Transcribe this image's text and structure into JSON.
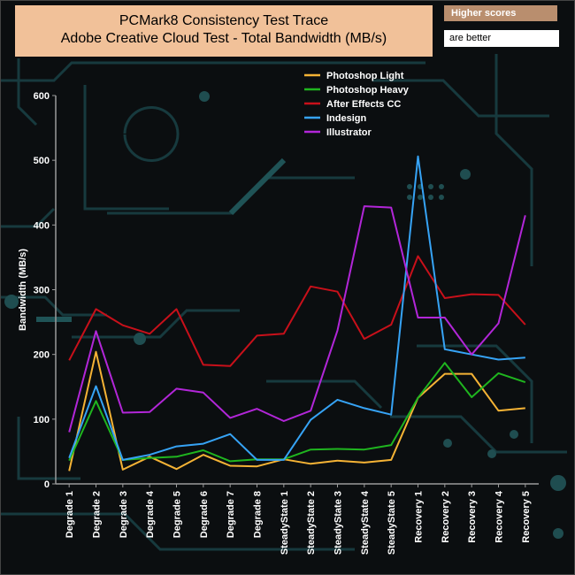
{
  "title_line1": "PCMark8 Consistency Test Trace",
  "title_line2": "Adobe Creative Cloud Test - Total Bandwidth (MB/s)",
  "note_top": "Higher scores",
  "note_bottom": "are better",
  "colors": {
    "photoshop_light": "#f5b335",
    "photoshop_heavy": "#1fb51f",
    "after_effects": "#c8101a",
    "indesign": "#36a3f5",
    "illustrator": "#b226d8"
  },
  "chart_data": {
    "type": "line",
    "ylabel": "Bandwidth (MB/s)",
    "ylim": [
      0,
      600
    ],
    "yticks": [
      0,
      100,
      200,
      300,
      400,
      500,
      600
    ],
    "legend_position": "top-center",
    "categories": [
      "Degrade 1",
      "Degrade 2",
      "Degrade 3",
      "Degrade 4",
      "Degrade 5",
      "Degrade 6",
      "Degrade 7",
      "Degrade 8",
      "SteadyState 1",
      "SteadyState 2",
      "SteadyState 3",
      "SteadyState 4",
      "SteadyState 5",
      "Recovery 1",
      "Recovery 2",
      "Recovery 3",
      "Recovery 4",
      "Recovery 5"
    ],
    "series": [
      {
        "name": "Photoshop Light",
        "color": "#f5b335",
        "values": [
          20,
          204,
          22,
          42,
          23,
          45,
          28,
          27,
          38,
          31,
          36,
          33,
          37,
          133,
          170,
          170,
          113,
          117
        ]
      },
      {
        "name": " Photoshop Heavy",
        "color": "#1fb51f",
        "values": [
          36,
          128,
          37,
          40,
          42,
          52,
          35,
          38,
          38,
          53,
          54,
          53,
          60,
          133,
          187,
          134,
          171,
          157
        ]
      },
      {
        "name": "After Effects CC",
        "color": "#c8101a",
        "values": [
          191,
          270,
          245,
          232,
          270,
          184,
          182,
          229,
          232,
          305,
          297,
          224,
          246,
          352,
          287,
          293,
          292,
          246
        ]
      },
      {
        "name": "Indesign",
        "color": "#36a3f5",
        "values": [
          40,
          151,
          37,
          45,
          58,
          62,
          77,
          37,
          37,
          99,
          130,
          117,
          107,
          506,
          208,
          200,
          192,
          195
        ]
      },
      {
        "name": "Illustrator",
        "color": "#b226d8",
        "values": [
          80,
          236,
          110,
          111,
          147,
          141,
          102,
          116,
          97,
          113,
          237,
          429,
          427,
          257,
          257,
          200,
          248,
          415
        ]
      }
    ]
  }
}
